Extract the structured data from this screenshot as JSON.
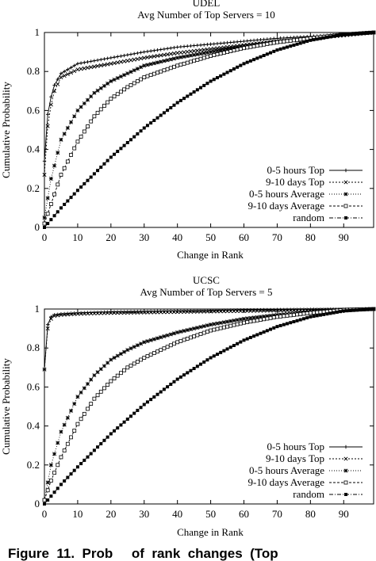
{
  "chart_data": [
    {
      "type": "line",
      "title": "UDEL",
      "subtitle": "Avg Number of Top Servers = 10",
      "xlabel": "Change in Rank",
      "ylabel": "Cumulative Probability",
      "xlim": [
        0,
        99
      ],
      "ylim": [
        0,
        1
      ],
      "xticks": [
        0,
        10,
        20,
        30,
        40,
        50,
        60,
        70,
        80,
        90
      ],
      "yticks": [
        0,
        0.2,
        0.4,
        0.6,
        0.8,
        1
      ],
      "legend_position": "bottom-right",
      "series": [
        {
          "name": "0-5 hours Top",
          "marker": "plus",
          "dash": "",
          "x": [
            0,
            1,
            2,
            3,
            5,
            10,
            20,
            30,
            40,
            50,
            60,
            70,
            80,
            90,
            99
          ],
          "y": [
            0.34,
            0.58,
            0.67,
            0.73,
            0.79,
            0.84,
            0.87,
            0.9,
            0.925,
            0.94,
            0.955,
            0.97,
            0.98,
            0.99,
            1.0
          ]
        },
        {
          "name": "9-10 days Top",
          "marker": "x",
          "dash": "2,2",
          "x": [
            0,
            1,
            2,
            3,
            5,
            10,
            20,
            30,
            40,
            50,
            60,
            70,
            80,
            90,
            99
          ],
          "y": [
            0.27,
            0.52,
            0.63,
            0.7,
            0.77,
            0.81,
            0.84,
            0.87,
            0.895,
            0.915,
            0.935,
            0.955,
            0.97,
            0.985,
            1.0
          ]
        },
        {
          "name": "0-5 hours Average",
          "marker": "star",
          "dash": "1,2",
          "x": [
            0,
            2,
            5,
            10,
            15,
            20,
            25,
            30,
            40,
            50,
            60,
            70,
            80,
            90,
            99
          ],
          "y": [
            0.05,
            0.25,
            0.45,
            0.6,
            0.69,
            0.75,
            0.79,
            0.83,
            0.87,
            0.9,
            0.93,
            0.95,
            0.97,
            0.99,
            1.0
          ]
        },
        {
          "name": "9-10 days Average",
          "marker": "square-open",
          "dash": "3,2",
          "x": [
            0,
            2,
            5,
            10,
            15,
            20,
            25,
            30,
            40,
            50,
            60,
            70,
            80,
            90,
            99
          ],
          "y": [
            0.02,
            0.12,
            0.27,
            0.44,
            0.57,
            0.66,
            0.72,
            0.77,
            0.83,
            0.88,
            0.92,
            0.95,
            0.97,
            0.99,
            1.0
          ]
        },
        {
          "name": "random",
          "marker": "square-filled",
          "dash": "5,2,1,2",
          "x": [
            0,
            5,
            10,
            20,
            30,
            40,
            50,
            60,
            70,
            80,
            90,
            99
          ],
          "y": [
            0.0,
            0.1,
            0.19,
            0.36,
            0.51,
            0.64,
            0.75,
            0.84,
            0.91,
            0.96,
            0.99,
            1.0
          ]
        }
      ]
    },
    {
      "type": "line",
      "title": "UCSC",
      "subtitle": "Avg Number of Top Servers = 5",
      "xlabel": "Change in Rank",
      "ylabel": "Cumulative Probability",
      "xlim": [
        0,
        99
      ],
      "ylim": [
        0,
        1
      ],
      "xticks": [
        0,
        10,
        20,
        30,
        40,
        50,
        60,
        70,
        80,
        90
      ],
      "yticks": [
        0,
        0.2,
        0.4,
        0.6,
        0.8,
        1
      ],
      "legend_position": "bottom-right",
      "series": [
        {
          "name": "0-5 hours Top",
          "marker": "plus",
          "dash": "",
          "x": [
            0,
            1,
            2,
            3,
            5,
            10,
            20,
            40,
            60,
            80,
            99
          ],
          "y": [
            0.69,
            0.92,
            0.96,
            0.97,
            0.975,
            0.98,
            0.985,
            0.99,
            0.995,
            0.998,
            1.0
          ]
        },
        {
          "name": "9-10 days Top",
          "marker": "x",
          "dash": "2,2",
          "x": [
            0,
            1,
            2,
            3,
            5,
            10,
            20,
            40,
            60,
            80,
            99
          ],
          "y": [
            0.69,
            0.9,
            0.95,
            0.965,
            0.97,
            0.975,
            0.98,
            0.985,
            0.99,
            0.995,
            1.0
          ]
        },
        {
          "name": "0-5 hours Average",
          "marker": "star",
          "dash": "1,2",
          "x": [
            0,
            2,
            5,
            10,
            15,
            20,
            25,
            30,
            40,
            50,
            60,
            70,
            80,
            90,
            99
          ],
          "y": [
            0.02,
            0.2,
            0.37,
            0.55,
            0.66,
            0.74,
            0.79,
            0.83,
            0.88,
            0.92,
            0.95,
            0.97,
            0.985,
            0.995,
            1.0
          ]
        },
        {
          "name": "9-10 days Average",
          "marker": "square-open",
          "dash": "3,2",
          "x": [
            0,
            2,
            5,
            10,
            15,
            20,
            25,
            30,
            40,
            50,
            60,
            70,
            80,
            90,
            99
          ],
          "y": [
            0.02,
            0.12,
            0.24,
            0.41,
            0.54,
            0.63,
            0.7,
            0.75,
            0.83,
            0.89,
            0.93,
            0.96,
            0.98,
            0.995,
            1.0
          ]
        },
        {
          "name": "random",
          "marker": "square-filled",
          "dash": "5,2,1,2",
          "x": [
            0,
            5,
            10,
            20,
            30,
            40,
            50,
            60,
            70,
            80,
            90,
            99
          ],
          "y": [
            0.0,
            0.1,
            0.19,
            0.36,
            0.51,
            0.64,
            0.75,
            0.84,
            0.91,
            0.96,
            0.99,
            1.0
          ]
        }
      ]
    }
  ],
  "caption": {
    "text": "Figure  11.  Prob     of  rank  changes  (Top"
  }
}
